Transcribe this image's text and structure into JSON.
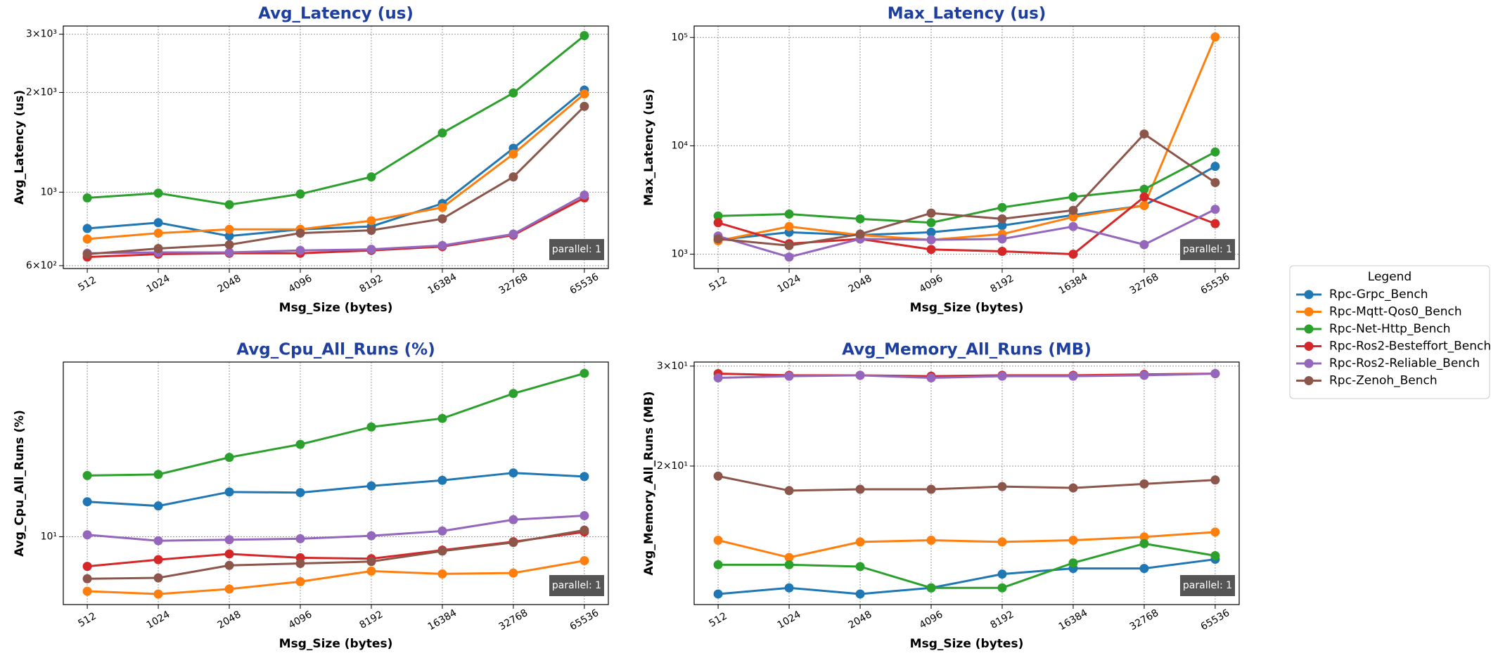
{
  "chart_data": [
    {
      "type": "line",
      "title": "Avg_Latency (us)",
      "xlabel": "Msg_Size (bytes)",
      "ylabel": "Avg_Latency (us)",
      "annotation": "parallel: 1",
      "categories": [
        "512",
        "1024",
        "2048",
        "4096",
        "8192",
        "16384",
        "32768",
        "65536"
      ],
      "yscale": "log",
      "grid": true,
      "ylim": [
        588,
        3175
      ],
      "yticks": [
        {
          "value": 600,
          "label": "6×10²"
        },
        {
          "value": 1000,
          "label": "10³"
        },
        {
          "value": 2000,
          "label": "2×10³"
        },
        {
          "value": 3000,
          "label": "3×10³"
        }
      ],
      "series": [
        {
          "name": "Rpc-Grpc_Bench",
          "color": "#1f77b4",
          "values": [
            777,
            809,
            737,
            772,
            788,
            924,
            1357,
            2034
          ]
        },
        {
          "name": "Rpc-Mqtt-Qos0_Bench",
          "color": "#ff7f0e",
          "values": [
            722,
            752,
            772,
            772,
            820,
            899,
            1304,
            1980
          ]
        },
        {
          "name": "Rpc-Net-Http_Bench",
          "color": "#2ca02c",
          "values": [
            961,
            993,
            917,
            987,
            1112,
            1509,
            1993,
            2970
          ]
        },
        {
          "name": "Rpc-Ros2-Besteffort_Bench",
          "color": "#d62728",
          "values": [
            637,
            650,
            654,
            654,
            667,
            685,
            742,
            961
          ]
        },
        {
          "name": "Rpc-Ros2-Reliable_Bench",
          "color": "#9467bd",
          "values": [
            654,
            658,
            658,
            667,
            672,
            690,
            747,
            980
          ]
        },
        {
          "name": "Rpc-Zenoh_Bench",
          "color": "#8c564b",
          "values": [
            650,
            676,
            694,
            752,
            767,
            831,
            1112,
            1816
          ]
        }
      ]
    },
    {
      "type": "line",
      "title": "Max_Latency (us)",
      "xlabel": "Msg_Size (bytes)",
      "ylabel": "Max_Latency (us)",
      "annotation": "parallel: 1",
      "categories": [
        "512",
        "1024",
        "2048",
        "4096",
        "8192",
        "16384",
        "32768",
        "65536"
      ],
      "yscale": "log",
      "grid": true,
      "ylim": [
        737,
        127500
      ],
      "yticks": [
        {
          "value": 1000,
          "label": "10³"
        },
        {
          "value": 10000,
          "label": "10⁴"
        },
        {
          "value": 100000,
          "label": "10⁵"
        }
      ],
      "series": [
        {
          "name": "Rpc-Grpc_Bench",
          "color": "#1f77b4",
          "values": [
            1356,
            1594,
            1500,
            1594,
            1838,
            2296,
            2812,
            6460
          ]
        },
        {
          "name": "Rpc-Mqtt-Qos0_Bench",
          "color": "#ff7f0e",
          "values": [
            1328,
            1800,
            1500,
            1356,
            1531,
            2205,
            2812,
            101000
          ]
        },
        {
          "name": "Rpc-Net-Http_Bench",
          "color": "#2ca02c",
          "values": [
            2250,
            2344,
            2118,
            1953,
            2700,
            3380,
            3970,
            8770
          ]
        },
        {
          "name": "Rpc-Ros2-Besteffort_Bench",
          "color": "#d62728",
          "values": [
            1953,
            1250,
            1383,
            1106,
            1063,
            1000,
            3380,
            1914
          ]
        },
        {
          "name": "Rpc-Ros2-Reliable_Bench",
          "color": "#9467bd",
          "values": [
            1470,
            941,
            1383,
            1356,
            1383,
            1800,
            1225,
            2595
          ]
        },
        {
          "name": "Rpc-Zenoh_Bench",
          "color": "#8c564b",
          "values": [
            1383,
            1200,
            1531,
            2393,
            2118,
            2541,
            12860,
            4580
          ]
        }
      ]
    },
    {
      "type": "line",
      "title": "Avg_Cpu_All_Runs (%)",
      "xlabel": "Msg_Size (bytes)",
      "ylabel": "Avg_Cpu_All_Runs (%)",
      "annotation": "parallel: 1",
      "categories": [
        "512",
        "1024",
        "2048",
        "4096",
        "8192",
        "16384",
        "32768",
        "65536"
      ],
      "yscale": "log",
      "grid": true,
      "ylim": [
        5.0,
        59.6
      ],
      "yticks": [
        {
          "value": 10,
          "label": "10¹"
        }
      ],
      "series": [
        {
          "name": "Rpc-Grpc_Bench",
          "color": "#1f77b4",
          "values": [
            14.3,
            13.7,
            15.8,
            15.7,
            16.8,
            17.8,
            19.2,
            18.5
          ]
        },
        {
          "name": "Rpc-Mqtt-Qos0_Bench",
          "color": "#ff7f0e",
          "values": [
            5.73,
            5.57,
            5.86,
            6.32,
            7.04,
            6.84,
            6.9,
            7.83
          ]
        },
        {
          "name": "Rpc-Net-Http_Bench",
          "color": "#2ca02c",
          "values": [
            18.7,
            18.9,
            22.5,
            25.7,
            30.7,
            33.5,
            43.2,
            53.1
          ]
        },
        {
          "name": "Rpc-Ros2-Besteffort_Bench",
          "color": "#d62728",
          "values": [
            7.39,
            7.91,
            8.39,
            8.07,
            7.99,
            8.72,
            9.5,
            10.5
          ]
        },
        {
          "name": "Rpc-Ros2-Reliable_Bench",
          "color": "#9467bd",
          "values": [
            10.2,
            9.6,
            9.7,
            9.8,
            10.1,
            10.6,
            11.9,
            12.4
          ]
        },
        {
          "name": "Rpc-Zenoh_Bench",
          "color": "#8c564b",
          "values": [
            6.51,
            6.57,
            7.46,
            7.61,
            7.76,
            8.64,
            9.43,
            10.7
          ]
        }
      ]
    },
    {
      "type": "line",
      "title": "Avg_Memory_All_Runs (MB)",
      "xlabel": "Msg_Size (bytes)",
      "ylabel": "Avg_Memory_All_Runs (MB)",
      "annotation": "parallel: 1",
      "categories": [
        "512",
        "1024",
        "2048",
        "4096",
        "8192",
        "16384",
        "32768",
        "65536"
      ],
      "yscale": "log",
      "grid": true,
      "ylim": [
        11.4,
        30.5
      ],
      "yticks": [
        {
          "value": 20,
          "label": "2×10¹"
        },
        {
          "value": 30,
          "label": "3×10¹"
        }
      ],
      "series": [
        {
          "name": "Rpc-Grpc_Bench",
          "color": "#1f77b4",
          "values": [
            11.9,
            12.2,
            11.9,
            12.2,
            12.9,
            13.2,
            13.2,
            13.7
          ]
        },
        {
          "name": "Rpc-Mqtt-Qos0_Bench",
          "color": "#ff7f0e",
          "values": [
            14.8,
            13.8,
            14.7,
            14.8,
            14.7,
            14.8,
            15.0,
            15.3
          ]
        },
        {
          "name": "Rpc-Net-Http_Bench",
          "color": "#2ca02c",
          "values": [
            13.4,
            13.4,
            13.3,
            12.2,
            12.2,
            13.5,
            14.6,
            13.9
          ]
        },
        {
          "name": "Rpc-Ros2-Besteffort_Bench",
          "color": "#d62728",
          "values": [
            29.1,
            28.9,
            28.9,
            28.8,
            28.9,
            28.9,
            29.0,
            29.1
          ]
        },
        {
          "name": "Rpc-Ros2-Reliable_Bench",
          "color": "#9467bd",
          "values": [
            28.6,
            28.8,
            28.9,
            28.6,
            28.8,
            28.8,
            28.9,
            29.1
          ]
        },
        {
          "name": "Rpc-Zenoh_Bench",
          "color": "#8c564b",
          "values": [
            19.2,
            18.1,
            18.2,
            18.2,
            18.4,
            18.3,
            18.6,
            18.9
          ]
        }
      ]
    }
  ],
  "legend": {
    "title": "Legend",
    "position": "right"
  }
}
